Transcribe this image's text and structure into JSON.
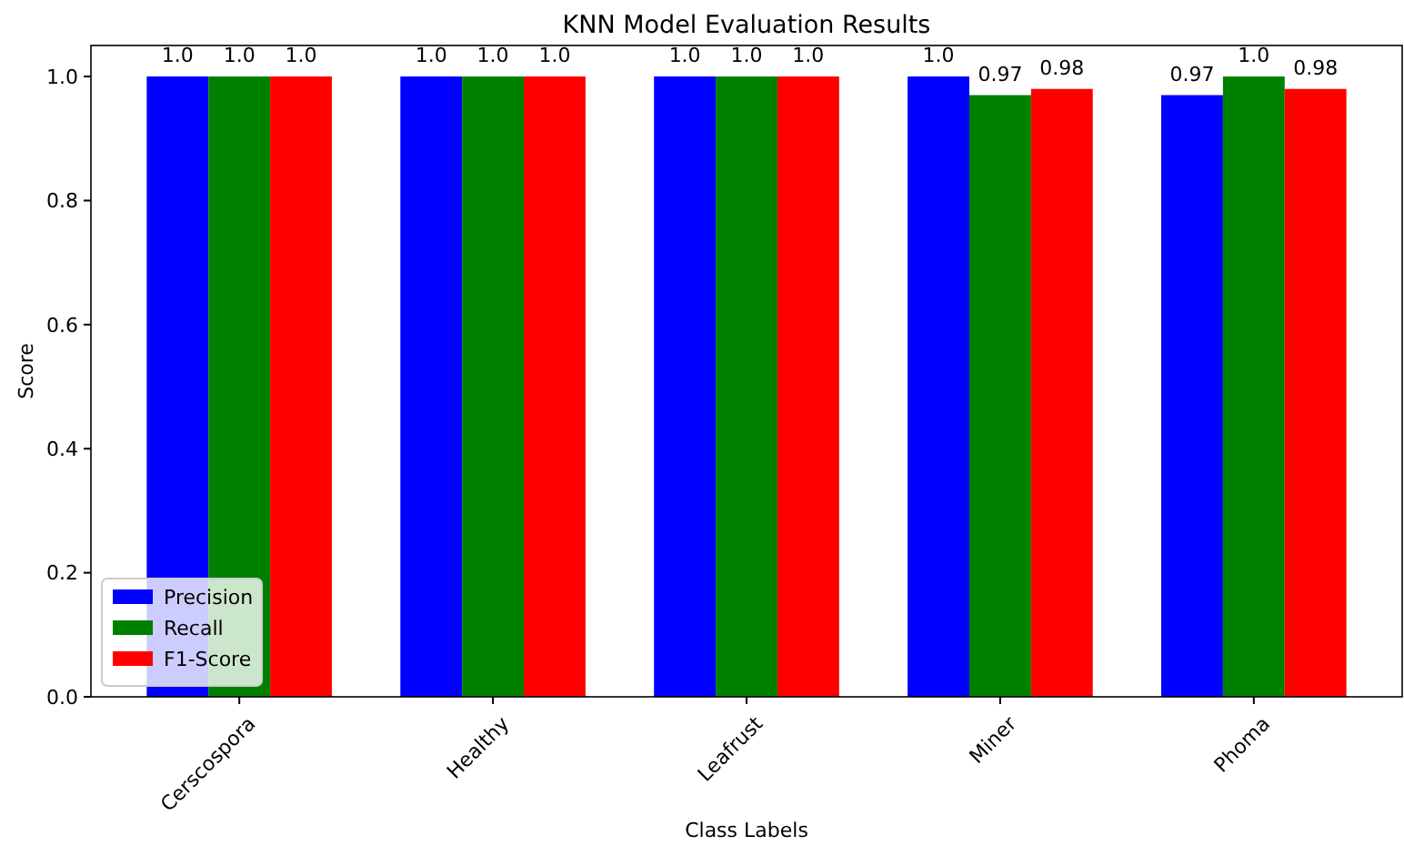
{
  "chart_data": {
    "type": "bar",
    "title": "KNN Model Evaluation Results",
    "xlabel": "Class Labels",
    "ylabel": "Score",
    "categories": [
      "Cerscospora",
      "Healthy",
      "Leafrust",
      "Miner",
      "Phoma"
    ],
    "series": [
      {
        "name": "Precision",
        "color": "#0000ff",
        "values": [
          1,
          1,
          1,
          1,
          0.97
        ],
        "value_labels": [
          "1.0",
          "1.0",
          "1.0",
          "1.0",
          "0.97"
        ]
      },
      {
        "name": "Recall",
        "color": "#008000",
        "values": [
          1,
          1,
          1,
          0.97,
          1
        ],
        "value_labels": [
          "1.0",
          "1.0",
          "1.0",
          "0.97",
          "1.0"
        ]
      },
      {
        "name": "F1-Score",
        "color": "#ff0000",
        "values": [
          1,
          1,
          1,
          0.98,
          0.98
        ],
        "value_labels": [
          "1.0",
          "1.0",
          "1.0",
          "0.98",
          "0.98"
        ]
      }
    ],
    "ylim": [
      0,
      1.05
    ],
    "yticks": [
      {
        "value": 0,
        "label": "0.0"
      },
      {
        "value": 0.2,
        "label": "0.2"
      },
      {
        "value": 0.4,
        "label": "0.4"
      },
      {
        "value": 0.6,
        "label": "0.6"
      },
      {
        "value": 0.8,
        "label": "0.8"
      },
      {
        "value": 1,
        "label": "1.0"
      }
    ],
    "legend": "bottom left"
  }
}
